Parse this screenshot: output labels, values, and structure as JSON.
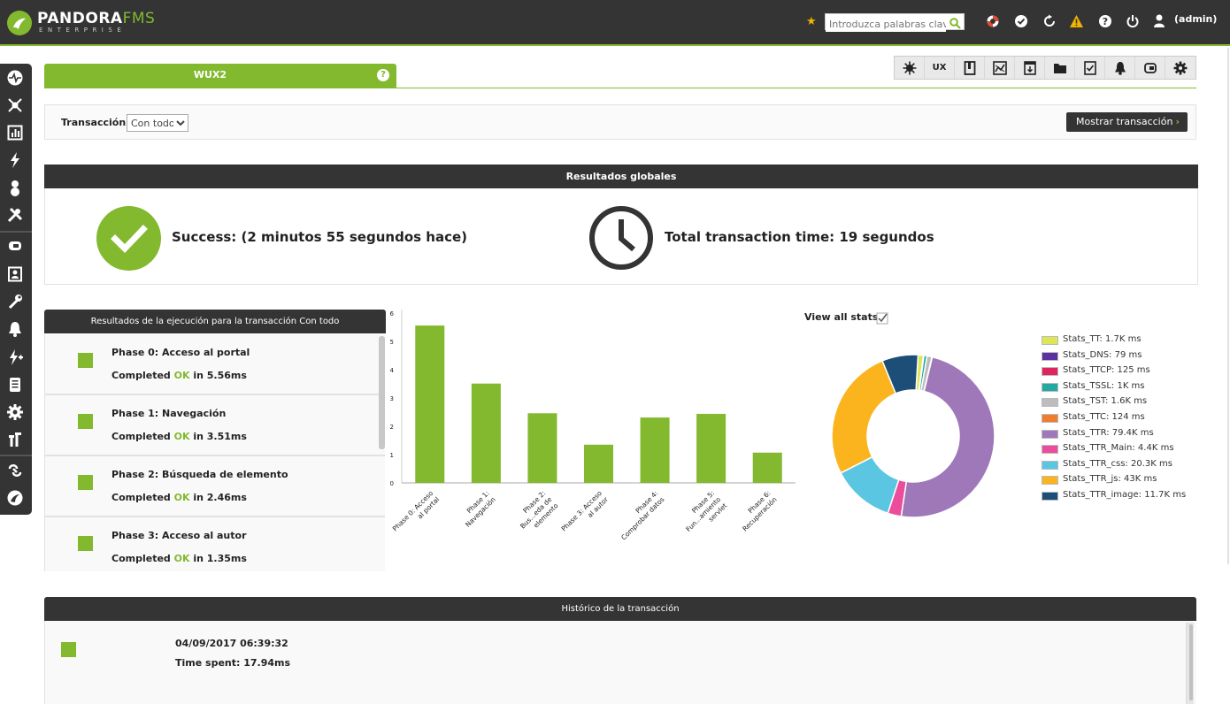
{
  "header": {
    "logo_text": "PANDORA",
    "logo_accent": "FMS",
    "logo_sub": "ENTERPRISE",
    "search_placeholder": "Introduzca palabras clave",
    "user": "(admin)",
    "icons": [
      "star-icon",
      "search-icon",
      "lifebuoy-icon",
      "check-icon",
      "refresh-icon",
      "warning-icon",
      "help-icon",
      "power-icon",
      "user-icon"
    ]
  },
  "sidebar": {
    "icons": [
      "monitoring-icon",
      "topology-icon",
      "reports-icon",
      "events-icon",
      "users-icon",
      "tools-icon",
      "wux-icon",
      "agents-icon",
      "configuration-icon",
      "alerts-icon",
      "actions-icon",
      "logs-icon",
      "setup-icon",
      "extensions-icon",
      "links-icon",
      "pandora-logo-icon"
    ]
  },
  "tabs": {
    "active_label": "WUX2",
    "help_label": "?",
    "toolbar": [
      "gear-sun-icon",
      "UX",
      "book-icon",
      "graph-icon",
      "server-icon",
      "folder-icon",
      "checklist-icon",
      "bell-icon",
      "plugin-icon",
      "settings-icon"
    ]
  },
  "filter": {
    "label": "Transacción",
    "selected": "Con todo",
    "button": "Mostrar transacción",
    "button_chevron": "›"
  },
  "global": {
    "title": "Resultados globales",
    "success_text": "Success: (2 minutos 55 segundos hace)",
    "time_text": "Total transaction time: 19 segundos"
  },
  "phases": {
    "title": "Resultados de la ejecución para la transacción Con todo",
    "items": [
      {
        "title": "Phase 0: Acceso al portal",
        "prefix": "Completed ",
        "status": "OK",
        "suffix": " in 5.56ms"
      },
      {
        "title": "Phase 1: Navegación",
        "prefix": "Completed ",
        "status": "OK",
        "suffix": " in 3.51ms"
      },
      {
        "title": "Phase 2: Búsqueda de elemento",
        "prefix": "Completed ",
        "status": "OK",
        "suffix": " in 2.46ms"
      },
      {
        "title": "Phase 3: Acceso al autor",
        "prefix": "Completed ",
        "status": "OK",
        "suffix": " in 1.35ms"
      }
    ]
  },
  "stats": {
    "view_all": "View all stats"
  },
  "chart_data": [
    {
      "type": "bar",
      "categories": [
        "Phase 0: Acceso al portal",
        "Phase 1: Navegación",
        "Phase 2: Bus...eda de elemento",
        "Phase 3: Acceso al autor",
        "Phase 4: Comprobar datos",
        "Phase 5: Fun...amiento servlet",
        "Phase 6: Recuperación"
      ],
      "values": [
        5.56,
        3.51,
        2.46,
        1.35,
        2.31,
        2.44,
        1.07
      ],
      "ylim": [
        0,
        6
      ],
      "yticks": [
        0,
        1,
        2,
        3,
        4,
        5,
        6
      ],
      "color": "#82b92e"
    },
    {
      "type": "pie",
      "labels": [
        "Stats_TT: 1.7K ms",
        "Stats_DNS: 79 ms",
        "Stats_TTCP: 125 ms",
        "Stats_TSSL: 1K ms",
        "Stats_TST: 1.6K ms",
        "Stats_TTC: 124 ms",
        "Stats_TTR: 79.4K ms",
        "Stats_TTR_Main: 4.4K ms",
        "Stats_TTR_css: 20.3K ms",
        "Stats_TTR_js: 43K ms",
        "Stats_TTR_image: 11.7K ms"
      ],
      "values": [
        1700,
        79,
        125,
        1000,
        1600,
        124,
        79400,
        4400,
        20300,
        43000,
        11700
      ],
      "colors": [
        "#dce657",
        "#5b30a0",
        "#e0245e",
        "#24a8a0",
        "#bdbdbd",
        "#ef7d2d",
        "#9e78b9",
        "#ec4c9c",
        "#5bc6e1",
        "#fbb41e",
        "#1c4e78"
      ],
      "legend": "right"
    }
  ],
  "history": {
    "title": "Histórico de la transacción",
    "date": "04/09/2017 06:39:32",
    "time_spent": "Time spent: 17.94ms"
  }
}
